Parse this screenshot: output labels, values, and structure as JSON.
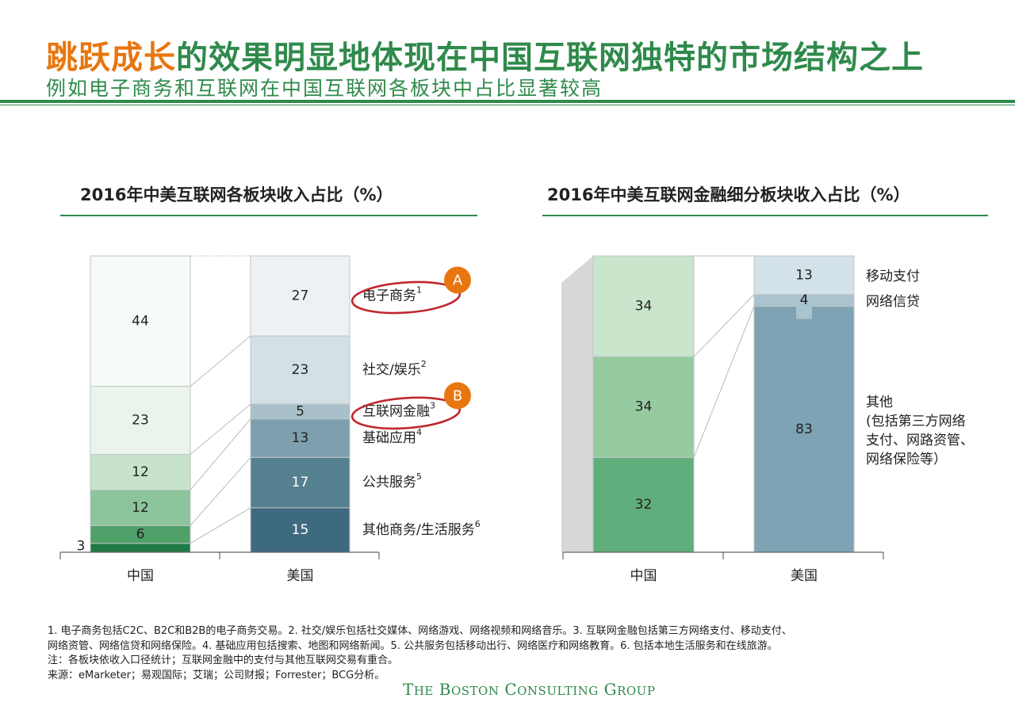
{
  "header": {
    "title_highlight": "跳跃成长",
    "title_rest": "的效果明显地体现在中国互联网独特的市场结构之上",
    "subtitle": "例如电子商务和互联网在中国互联网各板块中占比显著较高"
  },
  "chart_data": [
    {
      "type": "bar",
      "stacked": true,
      "percent": true,
      "title": "2016年中美互联网各板块收入占比（%）",
      "categories": [
        "中国",
        "美国"
      ],
      "series": [
        {
          "name": "其他商务/生活服务",
          "superscript": "6",
          "values": [
            3,
            15
          ]
        },
        {
          "name": "公共服务",
          "superscript": "5",
          "values": [
            6,
            17
          ]
        },
        {
          "name": "基础应用",
          "superscript": "4",
          "values": [
            12,
            13
          ]
        },
        {
          "name": "互联网金融",
          "superscript": "3",
          "values": [
            12,
            5
          ]
        },
        {
          "name": "社交/娱乐",
          "superscript": "2",
          "values": [
            23,
            23
          ]
        },
        {
          "name": "电子商务",
          "superscript": "1",
          "values": [
            44,
            27
          ]
        }
      ],
      "annotations": [
        {
          "marker": "A",
          "target": "电子商务"
        },
        {
          "marker": "B",
          "target": "互联网金融"
        }
      ],
      "colors": {
        "china": [
          "#1f7a45",
          "#4fa069",
          "#8cc49c",
          "#c7e3cc",
          "#eaf4ec",
          "#f7fbf8"
        ],
        "us": [
          "#3e6a80",
          "#55808f",
          "#7e9fae",
          "#a9c0ca",
          "#d3e0e6",
          "#eef1f3"
        ]
      }
    },
    {
      "type": "bar",
      "stacked": true,
      "percent": true,
      "title": "2016年中美互联网金融细分板块收入占比（%）",
      "categories": [
        "中国",
        "美国"
      ],
      "series_china": [
        {
          "values": [
            32
          ],
          "color": "#5fae7b"
        },
        {
          "values": [
            34
          ],
          "color": "#96ca9f"
        },
        {
          "values": [
            34
          ],
          "color": "#c9e5cc"
        }
      ],
      "series_us": [
        {
          "name": "其他",
          "note": [
            "(包括第三方网络",
            "支付、网路资管、",
            "网络保险等）"
          ],
          "values": [
            83
          ],
          "color": "#7ea3b5"
        },
        {
          "name": "网络信贷",
          "values": [
            4
          ],
          "color": "#a9c3cf"
        },
        {
          "name": "移动支付",
          "values": [
            13
          ],
          "color": "#d3e2e8"
        }
      ]
    }
  ],
  "footnotes": [
    "1. 电子商务包括C2C、B2C和B2B的电子商务交易。2. 社交/娱乐包括社交媒体、网络游戏、网络视频和网络音乐。3. 互联网金融包括第三方网络支付、移动支付、",
    "网络资管、网络信贷和网络保险。4. 基础应用包括搜索、地图和网络新闻。5. 公共服务包括移动出行、网络医疗和网络教育。6. 包括本地生活服务和在线旅游。",
    "注：各板块依收入口径统计；互联网金融中的支付与其他互联网交易有重合。",
    "来源：eMarketer；易观国际；艾瑞；公司财报；Forrester；BCG分析。"
  ],
  "logo": {
    "the": "T",
    "he": "HE",
    "boston_b": "B",
    "oston": "OSTON",
    "consulting_c": "C",
    "onsulting": "ONSULTING",
    "group_g": "G",
    "roup": "ROUP"
  }
}
